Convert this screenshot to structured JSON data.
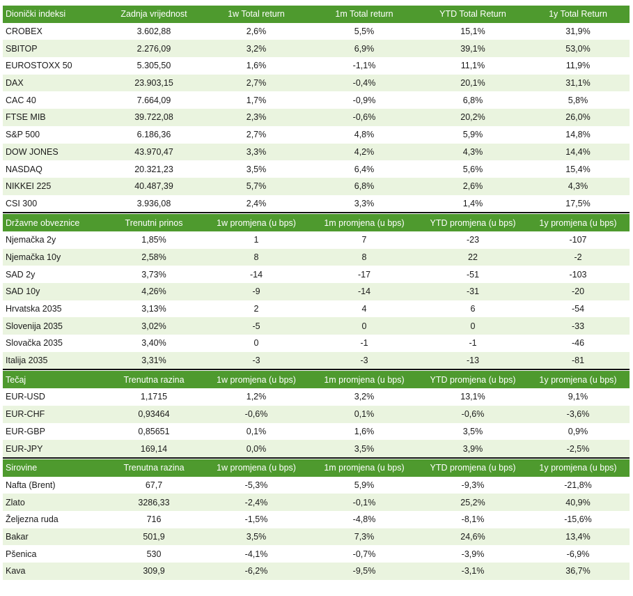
{
  "sections": [
    {
      "header": [
        "Dionički indeksi",
        "Zadnja vrijednost",
        "1w Total return",
        "1m Total return",
        "YTD Total Return",
        "1y Total Return"
      ],
      "rows": [
        [
          "CROBEX",
          "3.602,88",
          "2,6%",
          "5,5%",
          "15,1%",
          "31,9%"
        ],
        [
          "SBITOP",
          "2.276,09",
          "3,2%",
          "6,9%",
          "39,1%",
          "53,0%"
        ],
        [
          "EUROSTOXX 50",
          "5.305,50",
          "1,6%",
          "-1,1%",
          "11,1%",
          "11,9%"
        ],
        [
          "DAX",
          "23.903,15",
          "2,7%",
          "-0,4%",
          "20,1%",
          "31,1%"
        ],
        [
          "CAC 40",
          "7.664,09",
          "1,7%",
          "-0,9%",
          "6,8%",
          "5,8%"
        ],
        [
          "FTSE MIB",
          "39.722,08",
          "2,3%",
          "-0,6%",
          "20,2%",
          "26,0%"
        ],
        [
          "S&P 500",
          "6.186,36",
          "2,7%",
          "4,8%",
          "5,9%",
          "14,8%"
        ],
        [
          "DOW JONES",
          "43.970,47",
          "3,3%",
          "4,2%",
          "4,3%",
          "14,4%"
        ],
        [
          "NASDAQ",
          "20.321,23",
          "3,5%",
          "6,4%",
          "5,6%",
          "15,4%"
        ],
        [
          "NIKKEI 225",
          "40.487,39",
          "5,7%",
          "6,8%",
          "2,6%",
          "4,3%"
        ],
        [
          "CSI 300",
          "3.936,08",
          "2,4%",
          "3,3%",
          "1,4%",
          "17,5%"
        ]
      ]
    },
    {
      "header": [
        "Državne obveznice",
        "Trenutni prinos",
        "1w promjena (u bps)",
        "1m promjena (u bps)",
        "YTD promjena (u bps)",
        "1y promjena (u bps)"
      ],
      "rows": [
        [
          "Njemačka 2y",
          "1,85%",
          "1",
          "7",
          "-23",
          "-107"
        ],
        [
          "Njemačka 10y",
          "2,58%",
          "8",
          "8",
          "22",
          "-2"
        ],
        [
          "SAD 2y",
          "3,73%",
          "-14",
          "-17",
          "-51",
          "-103"
        ],
        [
          "SAD 10y",
          "4,26%",
          "-9",
          "-14",
          "-31",
          "-20"
        ],
        [
          "Hrvatska 2035",
          "3,13%",
          "2",
          "4",
          "6",
          "-54"
        ],
        [
          "Slovenija 2035",
          "3,02%",
          "-5",
          "0",
          "0",
          "-33"
        ],
        [
          "Slovačka 2035",
          "3,40%",
          "0",
          "-1",
          "-1",
          "-46"
        ],
        [
          "Italija 2035",
          "3,31%",
          "-3",
          "-3",
          "-13",
          "-81"
        ]
      ]
    },
    {
      "header": [
        "Tečaj",
        "Trenutna razina",
        "1w promjena (u bps)",
        "1m promjena (u bps)",
        "YTD promjena (u bps)",
        "1y promjena (u bps)"
      ],
      "rows": [
        [
          "EUR-USD",
          "1,1715",
          "1,2%",
          "3,2%",
          "13,1%",
          "9,1%"
        ],
        [
          "EUR-CHF",
          "0,93464",
          "-0,6%",
          "0,1%",
          "-0,6%",
          "-3,6%"
        ],
        [
          "EUR-GBP",
          "0,85651",
          "0,1%",
          "1,6%",
          "3,5%",
          "0,9%"
        ],
        [
          "EUR-JPY",
          "169,14",
          "0,0%",
          "3,5%",
          "3,9%",
          "-2,5%"
        ]
      ]
    },
    {
      "header": [
        "Sirovine",
        "Trenutna razina",
        "1w promjena (u bps)",
        "1m promjena (u bps)",
        "YTD promjena (u bps)",
        "1y promjena (u bps)"
      ],
      "rows": [
        [
          "Nafta (Brent)",
          "67,7",
          "-5,3%",
          "5,9%",
          "-9,3%",
          "-21,8%"
        ],
        [
          "Zlato",
          "3286,33",
          "-2,4%",
          "-0,1%",
          "25,2%",
          "40,9%"
        ],
        [
          "Željezna ruda",
          "716",
          "-1,5%",
          "-4,8%",
          "-8,1%",
          "-15,6%"
        ],
        [
          "Bakar",
          "501,9",
          "3,5%",
          "7,3%",
          "24,6%",
          "13,4%"
        ],
        [
          "Pšenica",
          "530",
          "-4,1%",
          "-0,7%",
          "-3,9%",
          "-6,9%"
        ],
        [
          "Kava",
          "309,9",
          "-6,2%",
          "-9,5%",
          "-3,1%",
          "36,7%"
        ]
      ]
    }
  ],
  "colors": {
    "header_bg": "#4e9a2e",
    "header_text": "#ffffff",
    "alt_row_bg": "#eaf4df",
    "divider": "#111111"
  }
}
